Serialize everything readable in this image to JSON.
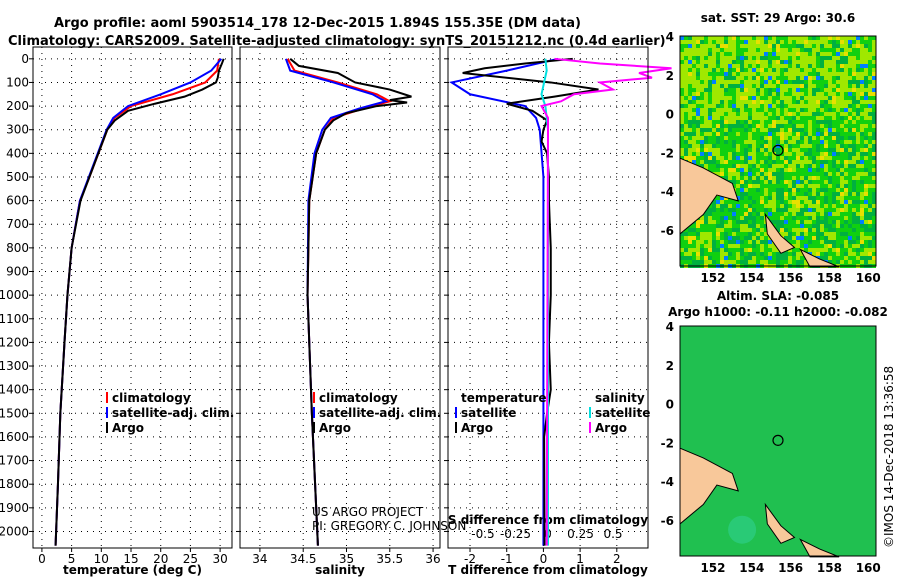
{
  "title": {
    "line1": "Argo profile: aoml 5903514_178 12-Dec-2015 1.894S 155.35E (DM data)",
    "line2": "Climatology: CARS2009. Satellite-adjusted climatology: synTS_20151212.nc (0.4d earlier)"
  },
  "credits": {
    "project": "US ARGO PROJECT",
    "pi": "PI: GREGORY C. JOHNSON",
    "imos": "©IMOS 14-Dec-2018 13:36:58"
  },
  "colors": {
    "clim": "#ff0000",
    "sat": "#0000ff",
    "argo": "#000000",
    "sal_sat": "#00e0e0",
    "sal_argo": "#ff00ff",
    "land": "#f8c89a"
  },
  "chart_data": [
    {
      "type": "line",
      "name": "temperature",
      "xlabel": "temperature (deg C)",
      "xlim": [
        -1.5,
        32
      ],
      "ylim": [
        2070,
        -50
      ],
      "xticks": [
        0,
        5,
        10,
        15,
        20,
        25,
        30
      ],
      "yticks": [
        0,
        100,
        200,
        300,
        400,
        500,
        600,
        700,
        800,
        900,
        1000,
        1100,
        1200,
        1300,
        1400,
        1500,
        1600,
        1700,
        1800,
        1900,
        2000
      ],
      "legend": [
        "climatology",
        "satellite-adj. clim.",
        "Argo"
      ],
      "series": [
        {
          "name": "climatology",
          "color": "#ff0000",
          "depth": [
            0,
            50,
            100,
            150,
            200,
            250,
            300,
            400,
            500,
            600,
            800,
            1000,
            1200,
            1500,
            1800,
            2060
          ],
          "values": [
            29.8,
            29.5,
            27.5,
            22,
            15,
            12.2,
            11,
            9.5,
            8,
            6.4,
            5,
            4.3,
            3.8,
            3.1,
            2.7,
            2.3
          ]
        },
        {
          "name": "satellite-adj. clim.",
          "color": "#0000ff",
          "depth": [
            0,
            50,
            100,
            150,
            200,
            250,
            300,
            400,
            500,
            600,
            800,
            1000,
            1200,
            1500,
            1800,
            2060
          ],
          "values": [
            30.2,
            28.5,
            25,
            20,
            14.5,
            12,
            10.9,
            9.4,
            7.9,
            6.4,
            5,
            4.3,
            3.8,
            3.1,
            2.7,
            2.3
          ]
        },
        {
          "name": "Argo",
          "color": "#000000",
          "depth": [
            0,
            20,
            50,
            80,
            100,
            130,
            160,
            190,
            220,
            260,
            300,
            400,
            500,
            600,
            800,
            1000,
            1200,
            1500,
            1800,
            2060
          ],
          "values": [
            30.6,
            30.3,
            29.8,
            29.6,
            29.3,
            27,
            24,
            19,
            14.5,
            12.3,
            11,
            9.5,
            8,
            6.5,
            5,
            4.3,
            3.8,
            3.1,
            2.7,
            2.3
          ]
        }
      ]
    },
    {
      "type": "line",
      "name": "salinity",
      "xlabel": "salinity",
      "xlim": [
        33.77,
        36.08
      ],
      "ylim": [
        2070,
        -50
      ],
      "xticks": [
        34,
        34.5,
        35,
        35.5,
        36
      ],
      "legend": [
        "climatology",
        "satellite-adj. clim.",
        "Argo"
      ],
      "series": [
        {
          "name": "climatology",
          "color": "#ff0000",
          "depth": [
            0,
            50,
            100,
            150,
            180,
            210,
            250,
            300,
            400,
            600,
            1000,
            1500,
            2060
          ],
          "values": [
            34.32,
            34.4,
            34.9,
            35.35,
            35.5,
            35.2,
            34.85,
            34.75,
            34.65,
            34.57,
            34.55,
            34.6,
            34.67
          ]
        },
        {
          "name": "satellite-adj. clim.",
          "color": "#0000ff",
          "depth": [
            0,
            50,
            100,
            150,
            180,
            210,
            250,
            300,
            400,
            600,
            1000,
            1500,
            2060
          ],
          "values": [
            34.3,
            34.35,
            34.85,
            35.3,
            35.45,
            35.15,
            34.82,
            34.72,
            34.63,
            34.56,
            34.55,
            34.6,
            34.67
          ]
        },
        {
          "name": "Argo",
          "color": "#000000",
          "depth": [
            0,
            30,
            60,
            100,
            130,
            160,
            175,
            185,
            200,
            230,
            260,
            300,
            400,
            600,
            1000,
            1500,
            2060
          ],
          "values": [
            34.35,
            34.45,
            34.9,
            35.1,
            35.5,
            35.75,
            35.5,
            35.7,
            35.35,
            35.0,
            34.85,
            34.75,
            34.65,
            34.57,
            34.55,
            34.6,
            34.67
          ]
        }
      ]
    },
    {
      "type": "line",
      "name": "difference",
      "xlabel": "T difference from climatology",
      "xlabel2": "S difference from climatology",
      "xlim": [
        -2.6,
        2.85
      ],
      "ylim": [
        2070,
        -50
      ],
      "xticks": [
        -2,
        -1,
        0,
        1,
        2
      ],
      "xticks2": [
        -0.5,
        -0.25,
        0,
        0.25,
        0.5
      ],
      "legend_t": [
        "temperature",
        "satellite",
        "Argo"
      ],
      "legend_s": [
        "salinity",
        "satellite",
        "Argo"
      ],
      "series": [
        {
          "name": "T satellite",
          "color": "#0000ff",
          "axis": "T",
          "depth": [
            0,
            50,
            100,
            150,
            200,
            250,
            300,
            500,
            1000,
            2060
          ],
          "values": [
            0.4,
            -1.0,
            -2.5,
            -2.0,
            -0.5,
            -0.2,
            -0.1,
            0,
            0,
            0
          ]
        },
        {
          "name": "T Argo",
          "color": "#000000",
          "axis": "T",
          "depth": [
            0,
            20,
            40,
            60,
            100,
            130,
            160,
            190,
            220,
            260,
            300,
            350,
            400,
            500,
            600,
            800,
            1000,
            1200,
            1400,
            1500,
            1600,
            2060
          ],
          "values": [
            0.8,
            -0.5,
            -1.6,
            -2.2,
            0.2,
            1.5,
            0.3,
            -1.0,
            -0.3,
            0.1,
            0,
            -0.05,
            0.1,
            0.15,
            0.15,
            0.2,
            0.2,
            0.15,
            0.2,
            0.1,
            0.02,
            0.03
          ]
        },
        {
          "name": "S satellite",
          "color": "#00e0e0",
          "axis": "S",
          "depth": [
            0,
            50,
            100,
            150,
            200,
            300,
            2060
          ],
          "values": [
            -0.02,
            -0.01,
            -0.03,
            -0.05,
            -0.02,
            0,
            0
          ]
        },
        {
          "name": "S Argo",
          "color": "#ff00ff",
          "axis": "S",
          "depth": [
            0,
            20,
            40,
            60,
            80,
            100,
            130,
            150,
            180,
            200,
            250,
            300,
            2060
          ],
          "values": [
            0.05,
            0.4,
            0.95,
            0.7,
            0.8,
            0.4,
            0.5,
            0.2,
            0.1,
            -0.05,
            0,
            0,
            -0.01
          ]
        }
      ]
    }
  ],
  "maps": [
    {
      "title": "sat. SST: 29 Argo: 30.6",
      "xticks": [
        152,
        154,
        156,
        158,
        160
      ],
      "yticks": [
        4,
        2,
        0,
        -2,
        -4,
        -6
      ],
      "float_lon": 155.35,
      "float_lat": -1.894
    },
    {
      "title": "Altim. SLA: -0.085",
      "subtitle": "Argo h1000: -0.11 h2000: -0.082",
      "xticks": [
        152,
        154,
        156,
        158,
        160
      ],
      "yticks": [
        4,
        2,
        0,
        -2,
        -4,
        -6
      ],
      "float_lon": 155.35,
      "float_lat": -1.894
    }
  ]
}
